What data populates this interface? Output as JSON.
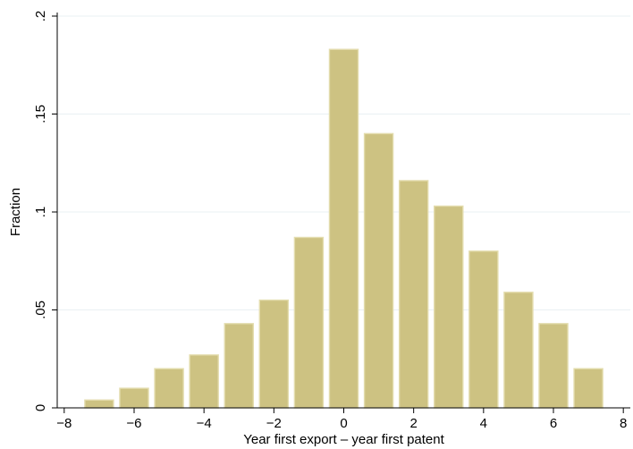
{
  "chart_data": {
    "type": "bar",
    "title": "",
    "xlabel": "Year first export – year first patent",
    "ylabel": "Fraction",
    "x": [
      -7,
      -6,
      -5,
      -4,
      -3,
      -2,
      -1,
      0,
      1,
      2,
      3,
      4,
      5,
      6,
      7
    ],
    "values": [
      0.004,
      0.01,
      0.02,
      0.027,
      0.043,
      0.055,
      0.087,
      0.183,
      0.14,
      0.116,
      0.103,
      0.08,
      0.059,
      0.043,
      0.02
    ],
    "xlim": [
      -8,
      8
    ],
    "ylim": [
      0,
      0.2
    ],
    "xticks": [
      -8,
      -6,
      -4,
      -2,
      0,
      2,
      4,
      6,
      8
    ],
    "xtick_labels": [
      "−8",
      "−6",
      "−4",
      "−2",
      "0",
      "2",
      "4",
      "6",
      "8"
    ],
    "yticks": [
      0,
      0.05,
      0.1,
      0.15,
      0.2
    ],
    "ytick_labels": [
      "0",
      ".05",
      ".1",
      ".15",
      ".2"
    ],
    "grid": true,
    "bar_color": "#cdc282",
    "bar_edge_color": "#e3dcad"
  }
}
